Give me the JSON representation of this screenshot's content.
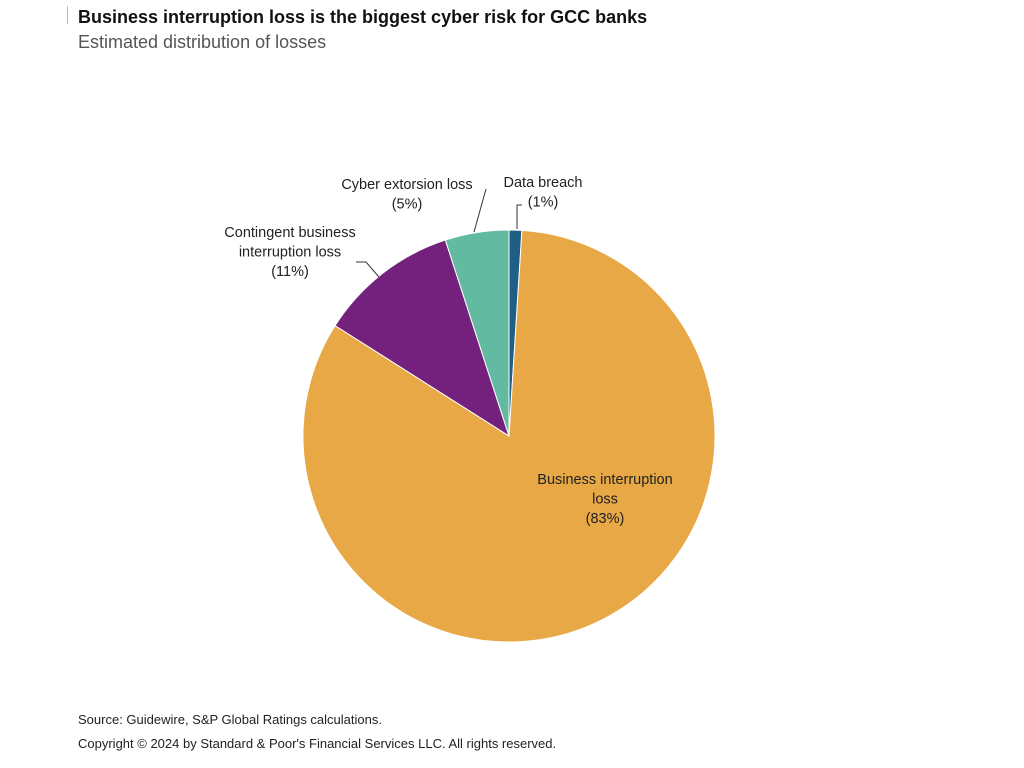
{
  "header": {
    "title": "Business interruption loss is the biggest cyber risk for GCC banks",
    "subtitle": "Estimated distribution of losses"
  },
  "chart_data": {
    "type": "pie",
    "start_angle_deg": 0,
    "direction": "clockwise",
    "slices": [
      {
        "name": "Data breach",
        "value": 1,
        "label_lines": [
          "Data breach",
          "(1%)"
        ],
        "color": "#1f5f86"
      },
      {
        "name": "Business interruption loss",
        "value": 83,
        "label_lines": [
          "Business interruption",
          "loss",
          "(83%)"
        ],
        "color": "#e8a845"
      },
      {
        "name": "Contingent business interruption loss",
        "value": 11,
        "label_lines": [
          "Contingent business",
          "interruption loss",
          "(11%)"
        ],
        "color": "#74217e"
      },
      {
        "name": "Cyber extorsion loss",
        "value": 5,
        "label_lines": [
          "Cyber extorsion loss",
          "(5%)"
        ],
        "color": "#62bba0"
      }
    ]
  },
  "footer": {
    "source": "Source: Guidewire, S&P Global Ratings calculations.",
    "copyright": "Copyright © 2024 by Standard & Poor's Financial Services LLC. All rights reserved."
  }
}
